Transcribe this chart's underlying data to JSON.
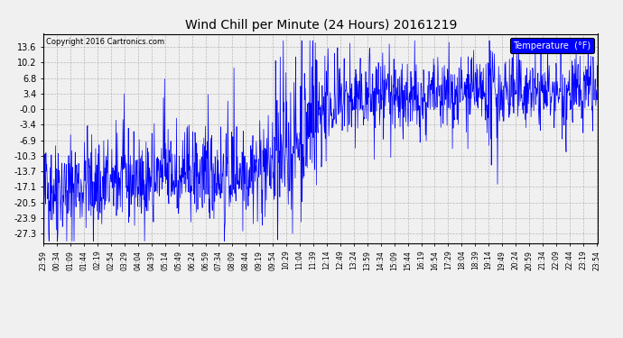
{
  "title": "Wind Chill per Minute (24 Hours) 20161219",
  "copyright": "Copyright 2016 Cartronics.com",
  "legend_label": "Temperature  (°F)",
  "line_color": "blue",
  "background_color": "#f0f0f0",
  "plot_bg_color": "#f0f0f0",
  "grid_color": "#aaaaaa",
  "yticks": [
    13.6,
    10.2,
    6.8,
    3.4,
    0.0,
    -3.4,
    -6.9,
    -10.3,
    -13.7,
    -17.1,
    -20.5,
    -23.9,
    -27.3
  ],
  "ytick_labels": [
    "13.6",
    "10.2",
    "6.8",
    "3.4",
    "-0.0",
    "-3.4",
    "-6.9",
    "-10.3",
    "-13.7",
    "-17.1",
    "-20.5",
    "-23.9",
    "-27.3"
  ],
  "ylim_min": -29.5,
  "ylim_max": 16.5,
  "n_points": 1440,
  "seed": 42,
  "xtick_start_hour": 23,
  "xtick_start_min": 59,
  "xtick_interval_min": 35
}
